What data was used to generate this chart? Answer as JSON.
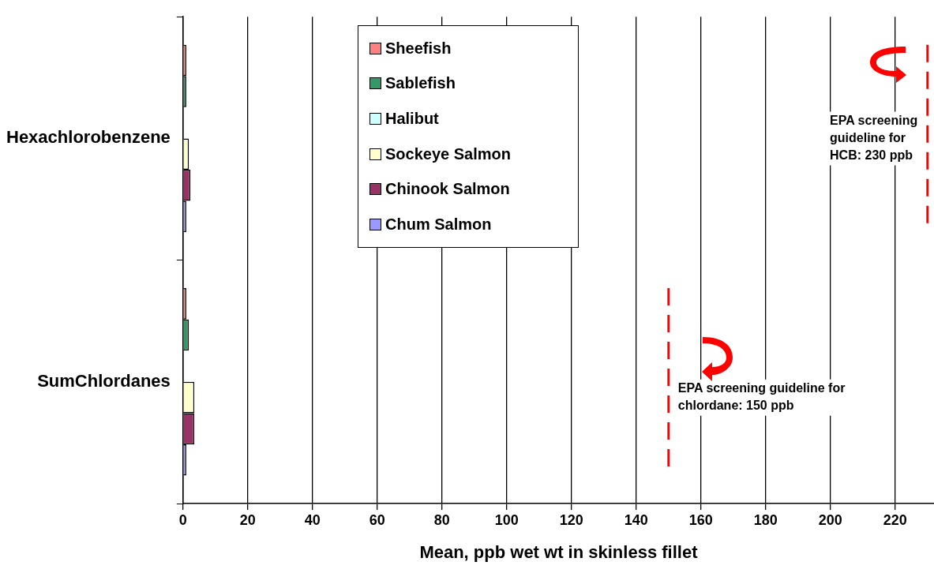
{
  "chart_data": {
    "type": "bar",
    "orientation": "horizontal",
    "xlabel": "Mean, ppb wet wt in skinless fillet",
    "categories": [
      "Hexachlorobenzene",
      "SumChlordanes"
    ],
    "series": [
      {
        "name": "Sheefish",
        "color": "#ff8080",
        "values": [
          1,
          1
        ]
      },
      {
        "name": "Sablefish",
        "color": "#339966",
        "values": [
          1,
          1.8
        ]
      },
      {
        "name": "Halibut",
        "color": "#ccffff",
        "values": [
          null,
          null
        ]
      },
      {
        "name": "Sockeye Salmon",
        "color": "#ffffcc",
        "values": [
          1.8,
          3.5
        ]
      },
      {
        "name": "Chinook Salmon",
        "color": "#993366",
        "values": [
          2.3,
          3.5
        ]
      },
      {
        "name": "Chum Salmon",
        "color": "#9999ff",
        "values": [
          1,
          1
        ]
      }
    ],
    "xlim": [
      0,
      232
    ],
    "xticks": [
      0,
      20,
      40,
      60,
      80,
      100,
      120,
      140,
      160,
      180,
      200,
      220
    ],
    "grid": "x",
    "legend": "top",
    "ref_lines": [
      {
        "axis": "x",
        "value": 230,
        "label": "EPA screening guideline for HCB: 230 ppb",
        "color": "#ff0000",
        "line_style": "dashed"
      },
      {
        "axis": "x",
        "value": 150,
        "label": "EPA screening guideline for chlordane: 150 ppb",
        "color": "#ff0000",
        "line_style": "dashed"
      }
    ]
  }
}
